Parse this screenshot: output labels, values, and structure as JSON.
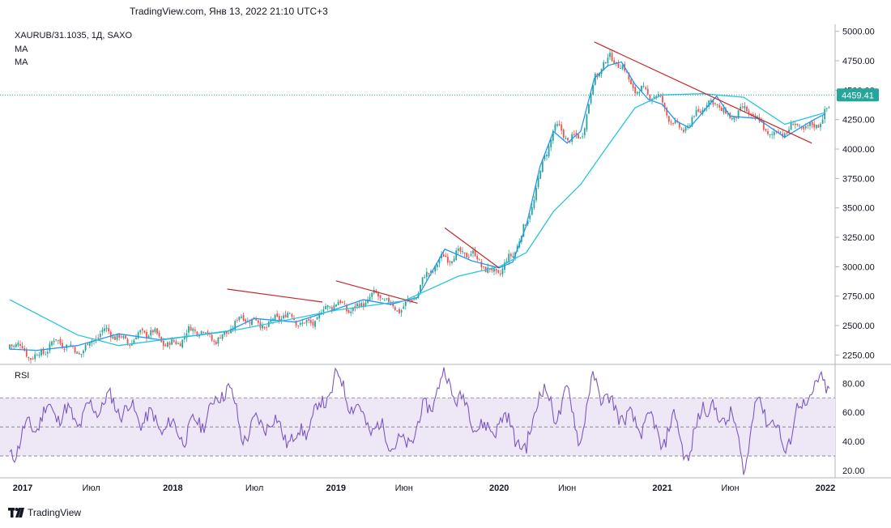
{
  "header": {
    "source_line": "TradingView.com, Янв 13, 2022 21:10 UTC+3"
  },
  "legend": {
    "symbol_line": "XAURUB/31.1035, 1Д, SAXO",
    "ma1": "MA",
    "ma2": "MA"
  },
  "rsi": {
    "title": "RSI"
  },
  "brand": {
    "name": "TradingView"
  },
  "colors": {
    "candle_up": "#26a69a",
    "candle_down": "#ef5350",
    "ma_fast": "#2196f3",
    "ma_slow": "#26c6da",
    "trendline": "#c62828",
    "rsi_line": "#7e57c2",
    "rsi_band": "#ede7f6",
    "price_label_bg": "#26a69a"
  },
  "chart_data": [
    {
      "type": "line",
      "subtype": "candlestick with moving averages",
      "title": "XAURUB/31.1035, 1Д, SAXO",
      "ylim": [
        2170,
        5060
      ],
      "y_ticks": [
        "5000.00",
        "4750.00",
        "4500.00",
        "4250.00",
        "4000.00",
        "3750.00",
        "3500.00",
        "3250.00",
        "3000.00",
        "2750.00",
        "2500.00",
        "2250.00"
      ],
      "x_ticks": [
        "2017",
        "Июл",
        "2018",
        "Июл",
        "2019",
        "Июн",
        "2020",
        "Июн",
        "2021",
        "Июн",
        "2022"
      ],
      "last_price": "4459.41",
      "series": [
        {
          "name": "MA",
          "role": "fast",
          "x": [
            "2017-01",
            "2017-03",
            "2017-06",
            "2017-09",
            "2017-12",
            "2018-03",
            "2018-05",
            "2018-07",
            "2018-10",
            "2019-01",
            "2019-03",
            "2019-05",
            "2019-07",
            "2019-09",
            "2019-11",
            "2020-01",
            "2020-02",
            "2020-03",
            "2020-04",
            "2020-05",
            "2020-06",
            "2020-07",
            "2020-08",
            "2020-09",
            "2020-10",
            "2020-11",
            "2020-12",
            "2021-01",
            "2021-02",
            "2021-03",
            "2021-05",
            "2021-06",
            "2021-08",
            "2021-10",
            "2021-12",
            "2022-01"
          ],
          "values": [
            2300,
            2290,
            2330,
            2430,
            2380,
            2420,
            2450,
            2560,
            2530,
            2640,
            2720,
            2680,
            2740,
            3150,
            3050,
            2990,
            3040,
            3350,
            3850,
            4150,
            4050,
            4150,
            4600,
            4710,
            4740,
            4550,
            4420,
            4380,
            4240,
            4180,
            4450,
            4280,
            4260,
            4100,
            4240,
            4300
          ]
        },
        {
          "name": "MA",
          "role": "slow",
          "x": [
            "2017-01",
            "2017-06",
            "2017-09",
            "2018-01",
            "2018-06",
            "2019-01",
            "2019-06",
            "2019-10",
            "2020-01",
            "2020-03",
            "2020-05",
            "2020-07",
            "2020-09",
            "2020-11",
            "2021-01",
            "2021-04",
            "2021-07",
            "2021-10",
            "2022-01"
          ],
          "values": [
            2720,
            2420,
            2330,
            2390,
            2470,
            2630,
            2710,
            2920,
            3000,
            3120,
            3470,
            3700,
            4030,
            4350,
            4460,
            4470,
            4440,
            4210,
            4310
          ]
        },
        {
          "name": "Trendline",
          "role": "line",
          "points": [
            [
              "2018-05",
              2810
            ],
            [
              "2018-12",
              2700
            ]
          ]
        },
        {
          "name": "Trendline",
          "role": "line",
          "points": [
            [
              "2019-01",
              2880
            ],
            [
              "2019-07",
              2690
            ]
          ]
        },
        {
          "name": "Trendline",
          "role": "line",
          "points": [
            [
              "2019-09",
              3330
            ],
            [
              "2020-01",
              2990
            ]
          ]
        },
        {
          "name": "Trendline",
          "role": "line",
          "points": [
            [
              "2020-08",
              4910
            ],
            [
              "2021-12",
              4050
            ]
          ]
        }
      ]
    },
    {
      "type": "line",
      "title": "RSI",
      "ylim": [
        15,
        93
      ],
      "y_ticks": [
        "80.00",
        "60.00",
        "40.00",
        "20.00"
      ],
      "bands": [
        30,
        50,
        70
      ],
      "series": [
        {
          "name": "RSI",
          "x": [
            "2017-01",
            "2017-02",
            "2017-04",
            "2017-06",
            "2017-08",
            "2017-10",
            "2017-12",
            "2018-02",
            "2018-04",
            "2018-05",
            "2018-06",
            "2018-08",
            "2018-10",
            "2018-12",
            "2019-01",
            "2019-03",
            "2019-05",
            "2019-06",
            "2019-08",
            "2019-09",
            "2019-10",
            "2019-12",
            "2020-01",
            "2020-02",
            "2020-03",
            "2020-04",
            "2020-05",
            "2020-06",
            "2020-07",
            "2020-08",
            "2020-09",
            "2020-10",
            "2020-11",
            "2020-12",
            "2021-01",
            "2021-02",
            "2021-03",
            "2021-04",
            "2021-05",
            "2021-06",
            "2021-07",
            "2021-08",
            "2021-09",
            "2021-10",
            "2021-11",
            "2021-12",
            "2022-01"
          ],
          "values": [
            30,
            45,
            62,
            55,
            68,
            60,
            52,
            45,
            63,
            82,
            45,
            55,
            40,
            65,
            84,
            55,
            42,
            35,
            68,
            85,
            70,
            45,
            55,
            50,
            30,
            80,
            58,
            72,
            42,
            85,
            65,
            60,
            50,
            55,
            40,
            55,
            25,
            70,
            55,
            60,
            22,
            70,
            55,
            35,
            60,
            75,
            80
          ]
        }
      ]
    }
  ]
}
